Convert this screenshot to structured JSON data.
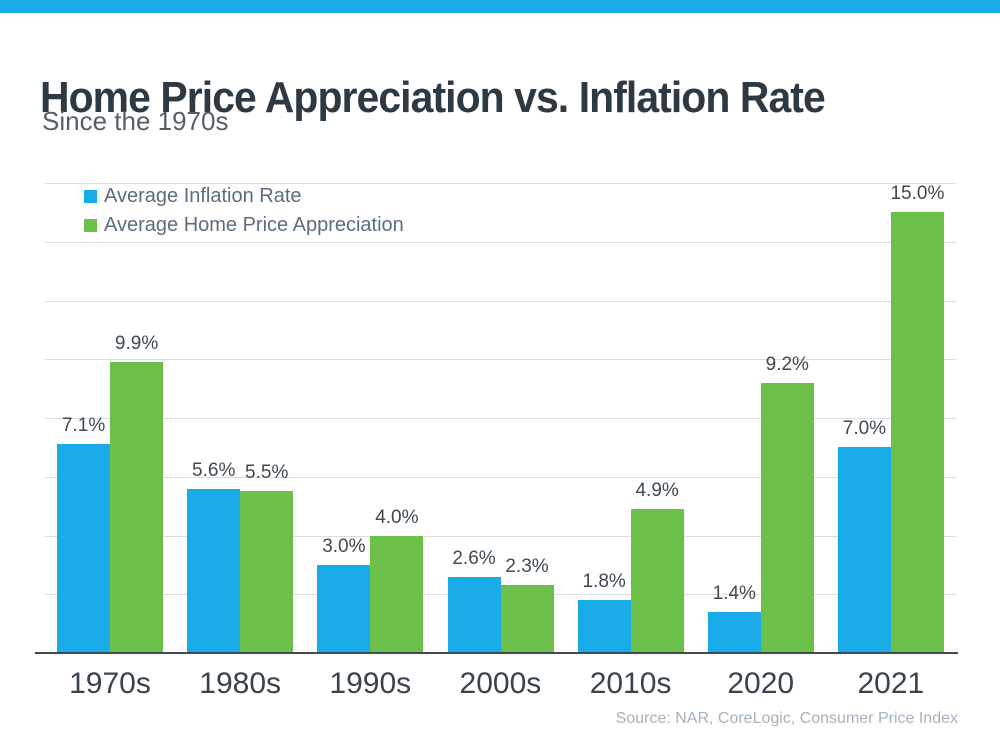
{
  "page": {
    "title": "Home Price Appreciation vs. Inflation Rate",
    "subtitle": "Since the 1970s",
    "source": "Source: NAR, CoreLogic, Consumer Price Index"
  },
  "colors": {
    "accent_strip": "#18abe8",
    "inflation_blue": "#18abe8",
    "appreciation_green": "#6cc04a",
    "gridline": "#dcdcdc",
    "axis": "#3f4951"
  },
  "chart_data": {
    "type": "bar",
    "title": "Home Price Appreciation vs. Inflation Rate",
    "subtitle": "Since the 1970s",
    "xlabel": "",
    "ylabel": "",
    "ylim": [
      0,
      16
    ],
    "gridline_step": 2,
    "grid": true,
    "legend_position": "top-left",
    "categories": [
      "1970s",
      "1980s",
      "1990s",
      "2000s",
      "2010s",
      "2020",
      "2021"
    ],
    "series": [
      {
        "name": "Average Inflation Rate",
        "color": "#18abe8",
        "values": [
          7.1,
          5.6,
          3.0,
          2.6,
          1.8,
          1.4,
          7.0
        ],
        "labels": [
          "7.1%",
          "5.6%",
          "3.0%",
          "2.6%",
          "1.8%",
          "1.4%",
          "7.0%"
        ]
      },
      {
        "name": "Average Home Price Appreciation",
        "color": "#6cc04a",
        "values": [
          9.9,
          5.5,
          4.0,
          2.3,
          4.9,
          9.2,
          15.0
        ],
        "labels": [
          "9.9%",
          "5.5%",
          "4.0%",
          "2.3%",
          "4.9%",
          "9.2%",
          "15.0%"
        ]
      }
    ]
  }
}
